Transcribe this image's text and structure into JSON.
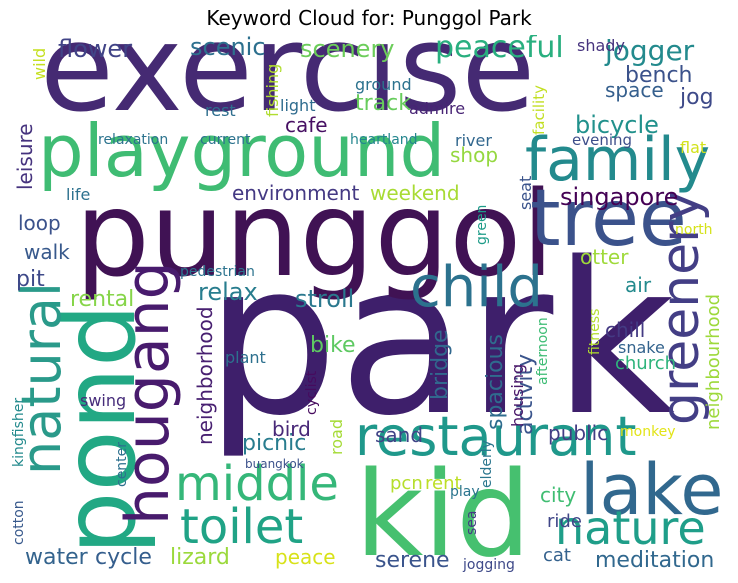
{
  "chart_data": {
    "type": "wordcloud",
    "title": "Keyword Cloud for: Punggol Park",
    "words": [
      {
        "text": "park",
        "color": "#3e1f6b"
      },
      {
        "text": "exercise",
        "color": "#452a73"
      },
      {
        "text": "punggol",
        "color": "#401254"
      },
      {
        "text": "playground",
        "color": "#3fbc73"
      },
      {
        "text": "kid",
        "color": "#46c06f"
      },
      {
        "text": "pond",
        "color": "#22a884"
      },
      {
        "text": "family",
        "color": "#238a8d"
      },
      {
        "text": "tree",
        "color": "#3b528b"
      },
      {
        "text": "lake",
        "color": "#31688e"
      },
      {
        "text": "child",
        "color": "#2c728e"
      },
      {
        "text": "restaurant",
        "color": "#1f988b"
      },
      {
        "text": "greenery",
        "color": "#433e85"
      },
      {
        "text": "hougang",
        "color": "#481b6d"
      },
      {
        "text": "natural",
        "color": "#2a9a8a"
      },
      {
        "text": "middle",
        "color": "#35b779"
      },
      {
        "text": "toilet",
        "color": "#20a386"
      },
      {
        "text": "nature",
        "color": "#1f9e89"
      },
      {
        "text": "peaceful",
        "color": "#29af7f"
      },
      {
        "text": "jogger",
        "color": "#238a8d"
      },
      {
        "text": "flower",
        "color": "#414487"
      },
      {
        "text": "scenic",
        "color": "#2d708e"
      },
      {
        "text": "scenery",
        "color": "#6ccd5a"
      },
      {
        "text": "bench",
        "color": "#3b528b"
      },
      {
        "text": "jog",
        "color": "#3e4a89"
      },
      {
        "text": "space",
        "color": "#355f8d"
      },
      {
        "text": "bicycle",
        "color": "#21918c"
      },
      {
        "text": "cafe",
        "color": "#471063"
      },
      {
        "text": "shop",
        "color": "#95d840"
      },
      {
        "text": "track",
        "color": "#67cc5c"
      },
      {
        "text": "environment",
        "color": "#443983"
      },
      {
        "text": "weekend",
        "color": "#a8db34"
      },
      {
        "text": "singapore",
        "color": "#440154"
      },
      {
        "text": "leisure",
        "color": "#46337e"
      },
      {
        "text": "loop",
        "color": "#3b528b"
      },
      {
        "text": "walk",
        "color": "#38598c"
      },
      {
        "text": "pit",
        "color": "#3e4989"
      },
      {
        "text": "rental",
        "color": "#86d549"
      },
      {
        "text": "relax",
        "color": "#287d8e"
      },
      {
        "text": "stroll",
        "color": "#2a788e"
      },
      {
        "text": "otter",
        "color": "#9fda3a"
      },
      {
        "text": "air",
        "color": "#238a8d"
      },
      {
        "text": "chill",
        "color": "#443a83"
      },
      {
        "text": "neighbourhood",
        "color": "#9dd93b"
      },
      {
        "text": "neighborhood",
        "color": "#482071"
      },
      {
        "text": "bike",
        "color": "#5ec962"
      },
      {
        "text": "bridge",
        "color": "#31688e"
      },
      {
        "text": "spacious",
        "color": "#2f6c8e"
      },
      {
        "text": "activity",
        "color": "#3a548c"
      },
      {
        "text": "picnic",
        "color": "#287c8e"
      },
      {
        "text": "bird",
        "color": "#482878"
      },
      {
        "text": "sand",
        "color": "#414487"
      },
      {
        "text": "public",
        "color": "#433d84"
      },
      {
        "text": "pcn",
        "color": "#b5de2b"
      },
      {
        "text": "rent",
        "color": "#bddf26"
      },
      {
        "text": "city",
        "color": "#40bd72"
      },
      {
        "text": "water",
        "color": "#33638d"
      },
      {
        "text": "cycle",
        "color": "#355e8d"
      },
      {
        "text": "lizard",
        "color": "#9bd93c"
      },
      {
        "text": "peace",
        "color": "#d8e219"
      },
      {
        "text": "serene",
        "color": "#3a548c"
      },
      {
        "text": "meditation",
        "color": "#31688e"
      },
      {
        "text": "ride",
        "color": "#404688"
      },
      {
        "text": "cat",
        "color": "#34618d"
      },
      {
        "text": "wild",
        "color": "#c5e021"
      },
      {
        "text": "fishing",
        "color": "#b0dd2f"
      },
      {
        "text": "ground",
        "color": "#2c728e"
      },
      {
        "text": "shady",
        "color": "#46337e"
      },
      {
        "text": "facility",
        "color": "#c2df23"
      },
      {
        "text": "rest",
        "color": "#2e6e8e"
      },
      {
        "text": "light",
        "color": "#2f6c8e"
      },
      {
        "text": "admire",
        "color": "#482475"
      },
      {
        "text": "relaxation",
        "color": "#2c738e"
      },
      {
        "text": "current",
        "color": "#2c728e"
      },
      {
        "text": "heartland",
        "color": "#24868e"
      },
      {
        "text": "river",
        "color": "#31678e"
      },
      {
        "text": "evening",
        "color": "#3d4e8a"
      },
      {
        "text": "flat",
        "color": "#d2e21b"
      },
      {
        "text": "life",
        "color": "#2d718e"
      },
      {
        "text": "seat",
        "color": "#3a538b"
      },
      {
        "text": "green",
        "color": "#1e9c89"
      },
      {
        "text": "north",
        "color": "#d5e21a"
      },
      {
        "text": "pedestrian",
        "color": "#2c738e"
      },
      {
        "text": "plant",
        "color": "#2d708e"
      },
      {
        "text": "fitness",
        "color": "#b2dd2d"
      },
      {
        "text": "afternoon",
        "color": "#3dbc74"
      },
      {
        "text": "snake",
        "color": "#33638d"
      },
      {
        "text": "church",
        "color": "#2fb47c"
      },
      {
        "text": "cyclist",
        "color": "#460b5e"
      },
      {
        "text": "swing",
        "color": "#472d7b"
      },
      {
        "text": "elderly",
        "color": "#2a768e"
      },
      {
        "text": "housing",
        "color": "#481668"
      },
      {
        "text": "kingfisher",
        "color": "#238a8d"
      },
      {
        "text": "center",
        "color": "#2d708e"
      },
      {
        "text": "road",
        "color": "#a5db36"
      },
      {
        "text": "buangkok",
        "color": "#3b518b"
      },
      {
        "text": "monkey",
        "color": "#e2e418"
      },
      {
        "text": "play",
        "color": "#2b758e"
      },
      {
        "text": "cotton",
        "color": "#38598c"
      },
      {
        "text": "sea",
        "color": "#443a83"
      },
      {
        "text": "jogging",
        "color": "#3e4989"
      }
    ]
  }
}
